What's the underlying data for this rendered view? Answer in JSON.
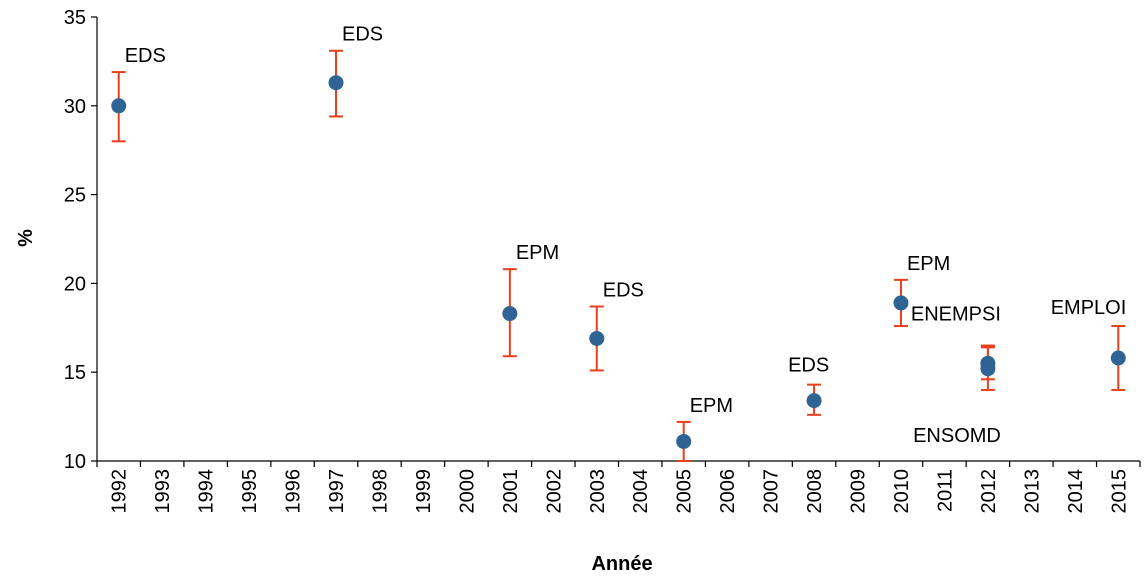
{
  "chart_data": {
    "type": "scatter",
    "title": "",
    "xlabel": "Année",
    "ylabel": "%",
    "ylim": [
      10,
      35
    ],
    "y_ticks": [
      "10",
      "15",
      "20",
      "25",
      "30",
      "35"
    ],
    "categories": [
      "1992",
      "1993",
      "1994",
      "1995",
      "1996",
      "1997",
      "1998",
      "1999",
      "2000",
      "2001",
      "2002",
      "2003",
      "2004",
      "2005",
      "2006",
      "2007",
      "2008",
      "2009",
      "2010",
      "2011",
      "2012",
      "2013",
      "2014",
      "2015"
    ],
    "grid": false,
    "colors": {
      "point": "#2E6394",
      "error_bar": "#E8401C",
      "axis": "#000000"
    },
    "points": [
      {
        "x": "1992",
        "y": 30.0,
        "err_low": 28.0,
        "err_high": 31.9,
        "label": "EDS"
      },
      {
        "x": "1997",
        "y": 31.3,
        "err_low": 29.4,
        "err_high": 33.1,
        "label": "EDS"
      },
      {
        "x": "2001",
        "y": 18.3,
        "err_low": 15.9,
        "err_high": 20.8,
        "label": "EPM"
      },
      {
        "x": "2003",
        "y": 16.9,
        "err_low": 15.1,
        "err_high": 18.7,
        "label": "EDS"
      },
      {
        "x": "2005",
        "y": 11.1,
        "err_low": 10.0,
        "err_high": 12.2,
        "label": "EPM"
      },
      {
        "x": "2008",
        "y": 13.4,
        "err_low": 12.6,
        "err_high": 14.3,
        "label": "EDS"
      },
      {
        "x": "2010",
        "y": 18.9,
        "err_low": 17.6,
        "err_high": 20.2,
        "label": "EPM"
      },
      {
        "x": "2012",
        "y": 15.5,
        "err_low": 14.6,
        "err_high": 16.5,
        "label": "ENEMPSI"
      },
      {
        "x": "2012",
        "y": 15.2,
        "err_low": 14.0,
        "err_high": 16.4,
        "label": "ENSOMD"
      },
      {
        "x": "2015",
        "y": 15.8,
        "err_low": 14.0,
        "err_high": 17.6,
        "label": "EMPLOI"
      }
    ]
  }
}
